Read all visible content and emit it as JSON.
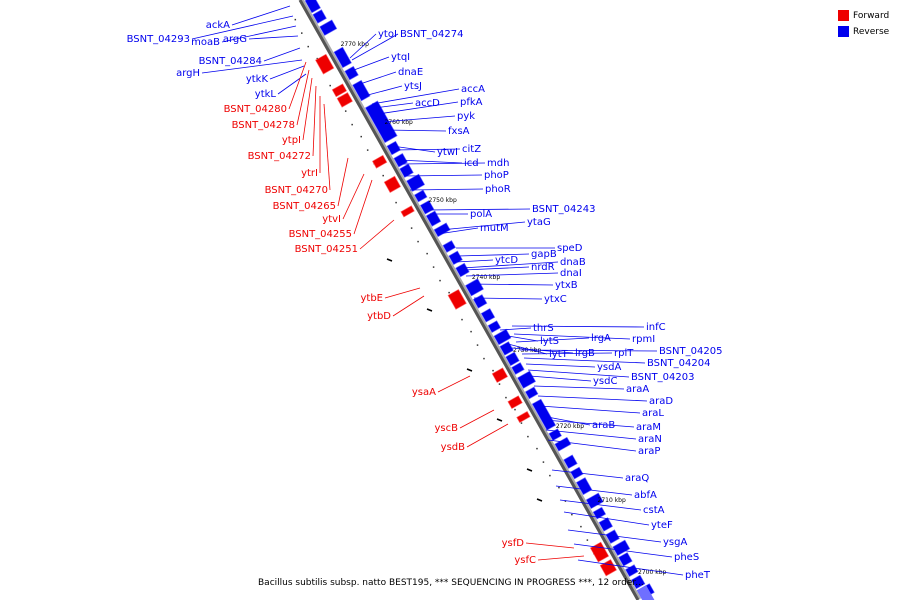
{
  "legend": {
    "items": [
      {
        "label": "Forward",
        "color": "#ee0000"
      },
      {
        "label": "Reverse",
        "color": "#0000ee"
      }
    ]
  },
  "caption": "Bacillus subtilis subsp. natto BEST195, *** SEQUENCING IN PROGRESS ***, 12 order...",
  "colors": {
    "forward": "#ee0000",
    "forward_light": "#ff6666",
    "reverse": "#0000ee",
    "reverse_light": "#6f6fff",
    "axis": "#555555",
    "dots": "#333333"
  },
  "chart_data": {
    "type": "diagram",
    "axis_ticks": [
      {
        "label": "2770 kbp"
      },
      {
        "label": "2760 kbp"
      },
      {
        "label": "2750 kbp"
      },
      {
        "label": "2740 kbp"
      },
      {
        "label": "2730 kbp"
      },
      {
        "label": "2720 kbp"
      },
      {
        "label": "2710 kbp"
      },
      {
        "label": "2700 kbp"
      }
    ],
    "forward_genes": [
      {
        "label": "BSNT_04280"
      },
      {
        "label": "BSNT_04278"
      },
      {
        "label": "ytpI"
      },
      {
        "label": "BSNT_04272"
      },
      {
        "label": "ytrI"
      },
      {
        "label": "BSNT_04270"
      },
      {
        "label": "BSNT_04265"
      },
      {
        "label": "ytvI"
      },
      {
        "label": "BSNT_04255"
      },
      {
        "label": "BSNT_04251"
      },
      {
        "label": "ytbE"
      },
      {
        "label": "ytbD"
      },
      {
        "label": "ysaA"
      },
      {
        "label": "yscB"
      },
      {
        "label": "ysdB"
      },
      {
        "label": "ysfD"
      },
      {
        "label": "ysfC"
      }
    ],
    "reverse_genes_left": [
      {
        "label": "ackA"
      },
      {
        "label": "BSNT_04293"
      },
      {
        "label": "moaB"
      },
      {
        "label": "argG"
      },
      {
        "label": "BSNT_04284"
      },
      {
        "label": "argH"
      },
      {
        "label": "ytkK"
      },
      {
        "label": "ytkL"
      }
    ],
    "reverse_genes_right": [
      {
        "label": "ytoI"
      },
      {
        "label": "BSNT_04274"
      },
      {
        "label": "ytqI"
      },
      {
        "label": "dnaE"
      },
      {
        "label": "ytsJ"
      },
      {
        "label": "accA"
      },
      {
        "label": "accD"
      },
      {
        "label": "pfkA"
      },
      {
        "label": "pyk"
      },
      {
        "label": "fxsA"
      },
      {
        "label": "citZ"
      },
      {
        "label": "ytwI"
      },
      {
        "label": "icd"
      },
      {
        "label": "mdh"
      },
      {
        "label": "phoP"
      },
      {
        "label": "phoR"
      },
      {
        "label": "BSNT_04243"
      },
      {
        "label": "polA"
      },
      {
        "label": "ytaG"
      },
      {
        "label": "mutM"
      },
      {
        "label": "speD"
      },
      {
        "label": "gapB"
      },
      {
        "label": "ytcD"
      },
      {
        "label": "dnaB"
      },
      {
        "label": "nrdR"
      },
      {
        "label": "dnaI"
      },
      {
        "label": "ytxB"
      },
      {
        "label": "ytxC"
      },
      {
        "label": "infC"
      },
      {
        "label": "thrS"
      },
      {
        "label": "rpmI"
      },
      {
        "label": "lrgA"
      },
      {
        "label": "lytS"
      },
      {
        "label": "BSNT_04205"
      },
      {
        "label": "rplT"
      },
      {
        "label": "lrgB"
      },
      {
        "label": "lytT"
      },
      {
        "label": "BSNT_04204"
      },
      {
        "label": "ysdA"
      },
      {
        "label": "BSNT_04203"
      },
      {
        "label": "ysdC"
      },
      {
        "label": "araA"
      },
      {
        "label": "araD"
      },
      {
        "label": "araL"
      },
      {
        "label": "araB"
      },
      {
        "label": "araM"
      },
      {
        "label": "araN"
      },
      {
        "label": "araP"
      },
      {
        "label": "araQ"
      },
      {
        "label": "abfA"
      },
      {
        "label": "cstA"
      },
      {
        "label": "yteF"
      },
      {
        "label": "ysgA"
      },
      {
        "label": "pheS"
      },
      {
        "label": "pheT"
      }
    ]
  }
}
